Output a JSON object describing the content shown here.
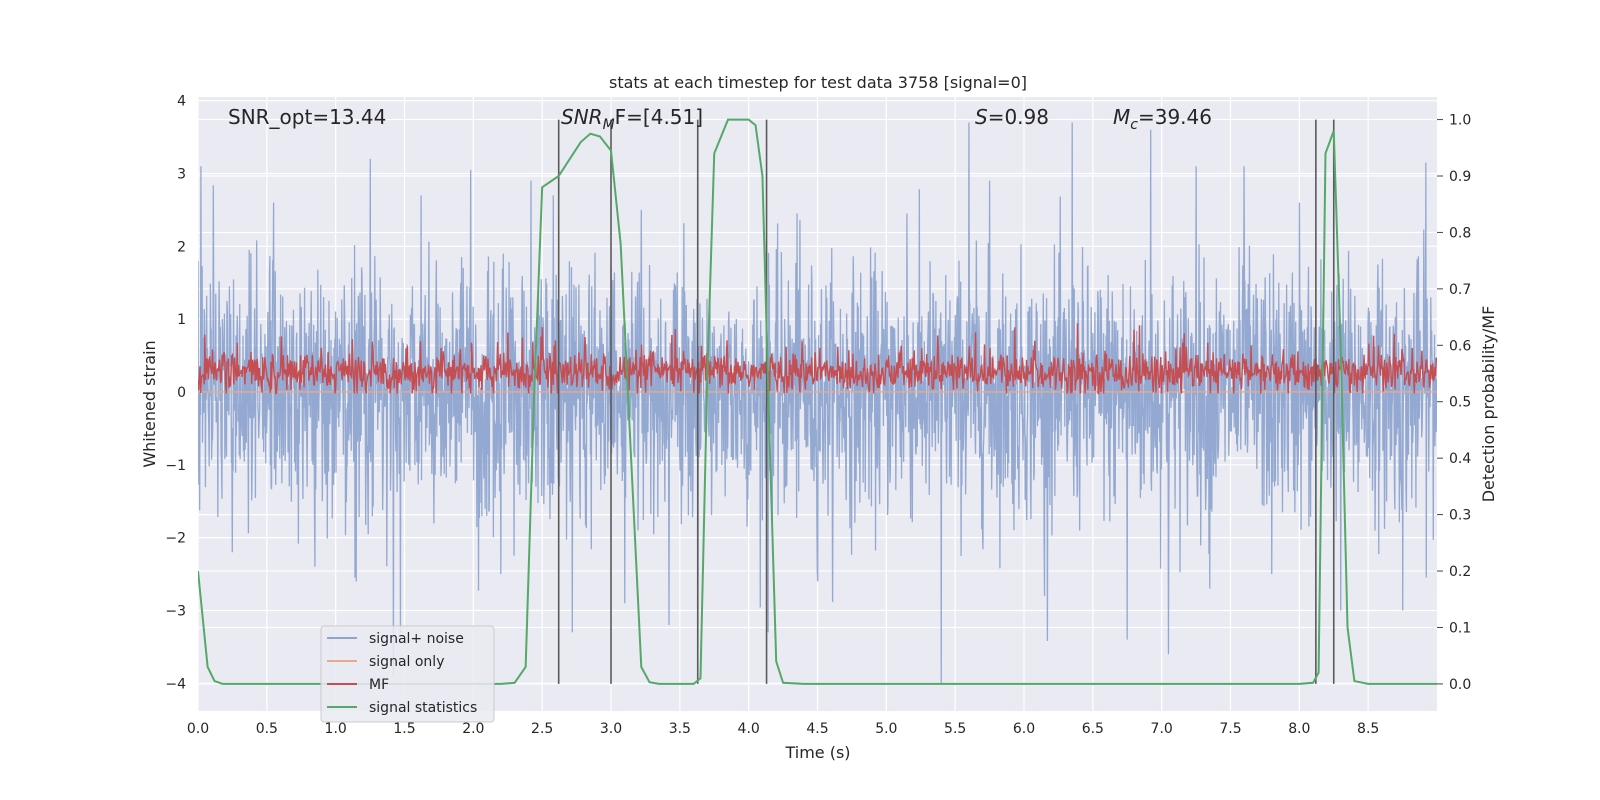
{
  "chart_data": {
    "type": "line",
    "title": "stats at each timestep for test data 3758 [signal=0]",
    "xlabel": "Time (s)",
    "ylabel_left": "Whitened strain",
    "ylabel_right": "Detection probability/MF",
    "xlim": [
      0.0,
      9.0
    ],
    "ylim_left": [
      -4.38,
      4.05
    ],
    "ylim_right": [
      -0.048,
      1.04
    ],
    "grid": true,
    "x_ticks": [
      "0.0",
      "0.5",
      "1.0",
      "1.5",
      "2.0",
      "2.5",
      "3.0",
      "3.5",
      "4.0",
      "4.5",
      "5.0",
      "5.5",
      "6.0",
      "6.5",
      "7.0",
      "7.5",
      "8.0",
      "8.5"
    ],
    "y_ticks_left": [
      "−4",
      "−3",
      "−2",
      "−1",
      "0",
      "1",
      "2",
      "3",
      "4"
    ],
    "y_ticks_right": [
      "0.0",
      "0.1",
      "0.2",
      "0.3",
      "0.4",
      "0.5",
      "0.6",
      "0.7",
      "0.8",
      "0.9",
      "1.0"
    ],
    "annotations": {
      "snr_opt": "SNR_opt=13.44",
      "snr_mf_main": "SNR",
      "snr_mf_sub": "M",
      "snr_mf_rest": "F=[4.51]",
      "s_main": "S",
      "s_rest": "=0.98",
      "mc_main": "M",
      "mc_sub": "c",
      "mc_rest": "=39.46"
    },
    "legend": {
      "position": "lower-left",
      "entries": [
        {
          "label": "signal+ noise",
          "color": "#8fa5cf"
        },
        {
          "label": "signal only",
          "color": "#e8a98c"
        },
        {
          "label": "MF",
          "color": "#c44e52"
        },
        {
          "label": "signal statistics",
          "color": "#55a868"
        }
      ]
    },
    "series": [
      {
        "name": "signal+ noise",
        "axis": "left",
        "color": "#8fa5cf",
        "description": "whitened noise, amplitude about ±1.3 with spikes to ±3.7"
      },
      {
        "name": "signal only",
        "axis": "left",
        "color": "#e8a98c",
        "values_constant": 0
      },
      {
        "name": "MF",
        "axis": "left",
        "color": "#c44e52",
        "description": "matched filter output, roughly 0.0 to 0.8"
      },
      {
        "name": "signal statistics",
        "axis": "right",
        "color": "#55a868",
        "x": [
          0.0,
          0.07,
          0.12,
          0.18,
          0.3,
          0.5,
          1.0,
          1.5,
          2.0,
          2.2,
          2.3,
          2.38,
          2.44,
          2.5,
          2.62,
          2.7,
          2.78,
          2.85,
          2.92,
          3.0,
          3.07,
          3.15,
          3.22,
          3.28,
          3.35,
          3.5,
          3.6,
          3.65,
          3.7,
          3.75,
          3.85,
          4.0,
          4.05,
          4.1,
          4.15,
          4.2,
          4.25,
          4.4,
          5.0,
          6.0,
          7.0,
          7.5,
          8.0,
          8.1,
          8.14,
          8.19,
          8.25,
          8.3,
          8.35,
          8.4,
          8.5,
          9.0
        ],
        "values": [
          0.2,
          0.03,
          0.005,
          0.0,
          0.0,
          0.0,
          0.0,
          0.0,
          0.0,
          0.0,
          0.002,
          0.03,
          0.5,
          0.88,
          0.9,
          0.93,
          0.96,
          0.975,
          0.97,
          0.945,
          0.78,
          0.38,
          0.03,
          0.003,
          0.0,
          0.0,
          0.0,
          0.01,
          0.55,
          0.94,
          1.0,
          1.0,
          0.99,
          0.9,
          0.45,
          0.04,
          0.002,
          0.0,
          0.0,
          0.0,
          0.0,
          0.0,
          0.0,
          0.002,
          0.02,
          0.94,
          0.98,
          0.6,
          0.1,
          0.005,
          0.0,
          0.0
        ]
      }
    ],
    "vertical_lines_x": [
      2.62,
      3.0,
      3.63,
      4.13,
      8.12,
      8.25
    ],
    "noise_spikes": {
      "up": [
        [
          0.02,
          3.1
        ],
        [
          0.55,
          2.6
        ],
        [
          1.25,
          3.2
        ],
        [
          1.62,
          2.7
        ],
        [
          1.98,
          3.05
        ],
        [
          2.42,
          2.9
        ],
        [
          2.58,
          2.7
        ],
        [
          3.22,
          2.5
        ],
        [
          4.35,
          2.45
        ],
        [
          5.15,
          2.45
        ],
        [
          5.6,
          3.7
        ],
        [
          5.75,
          2.9
        ],
        [
          6.35,
          3.7
        ],
        [
          6.92,
          3.6
        ],
        [
          7.25,
          3.1
        ],
        [
          7.6,
          3.1
        ],
        [
          8.0,
          2.6
        ],
        [
          8.3,
          3.0
        ],
        [
          8.92,
          3.15
        ]
      ],
      "down": [
        [
          0.25,
          -2.2
        ],
        [
          0.85,
          -2.4
        ],
        [
          1.15,
          -2.6
        ],
        [
          1.42,
          -3.9
        ],
        [
          1.47,
          -3.3
        ],
        [
          2.2,
          -2.5
        ],
        [
          2.72,
          -3.3
        ],
        [
          3.1,
          -2.9
        ],
        [
          3.42,
          -3.2
        ],
        [
          3.63,
          -3.5
        ],
        [
          4.14,
          -3.3
        ],
        [
          4.5,
          -2.6
        ],
        [
          5.4,
          -4.0
        ],
        [
          6.15,
          -2.8
        ],
        [
          6.75,
          -3.4
        ],
        [
          7.05,
          -3.6
        ],
        [
          7.35,
          -2.7
        ],
        [
          7.8,
          -2.5
        ],
        [
          8.3,
          -3.0
        ],
        [
          8.75,
          -3.0
        ]
      ]
    },
    "colors": {
      "axes_background": "#eaeaf2",
      "grid": "#ffffff",
      "vertical_line": "#5a5a5a"
    }
  }
}
